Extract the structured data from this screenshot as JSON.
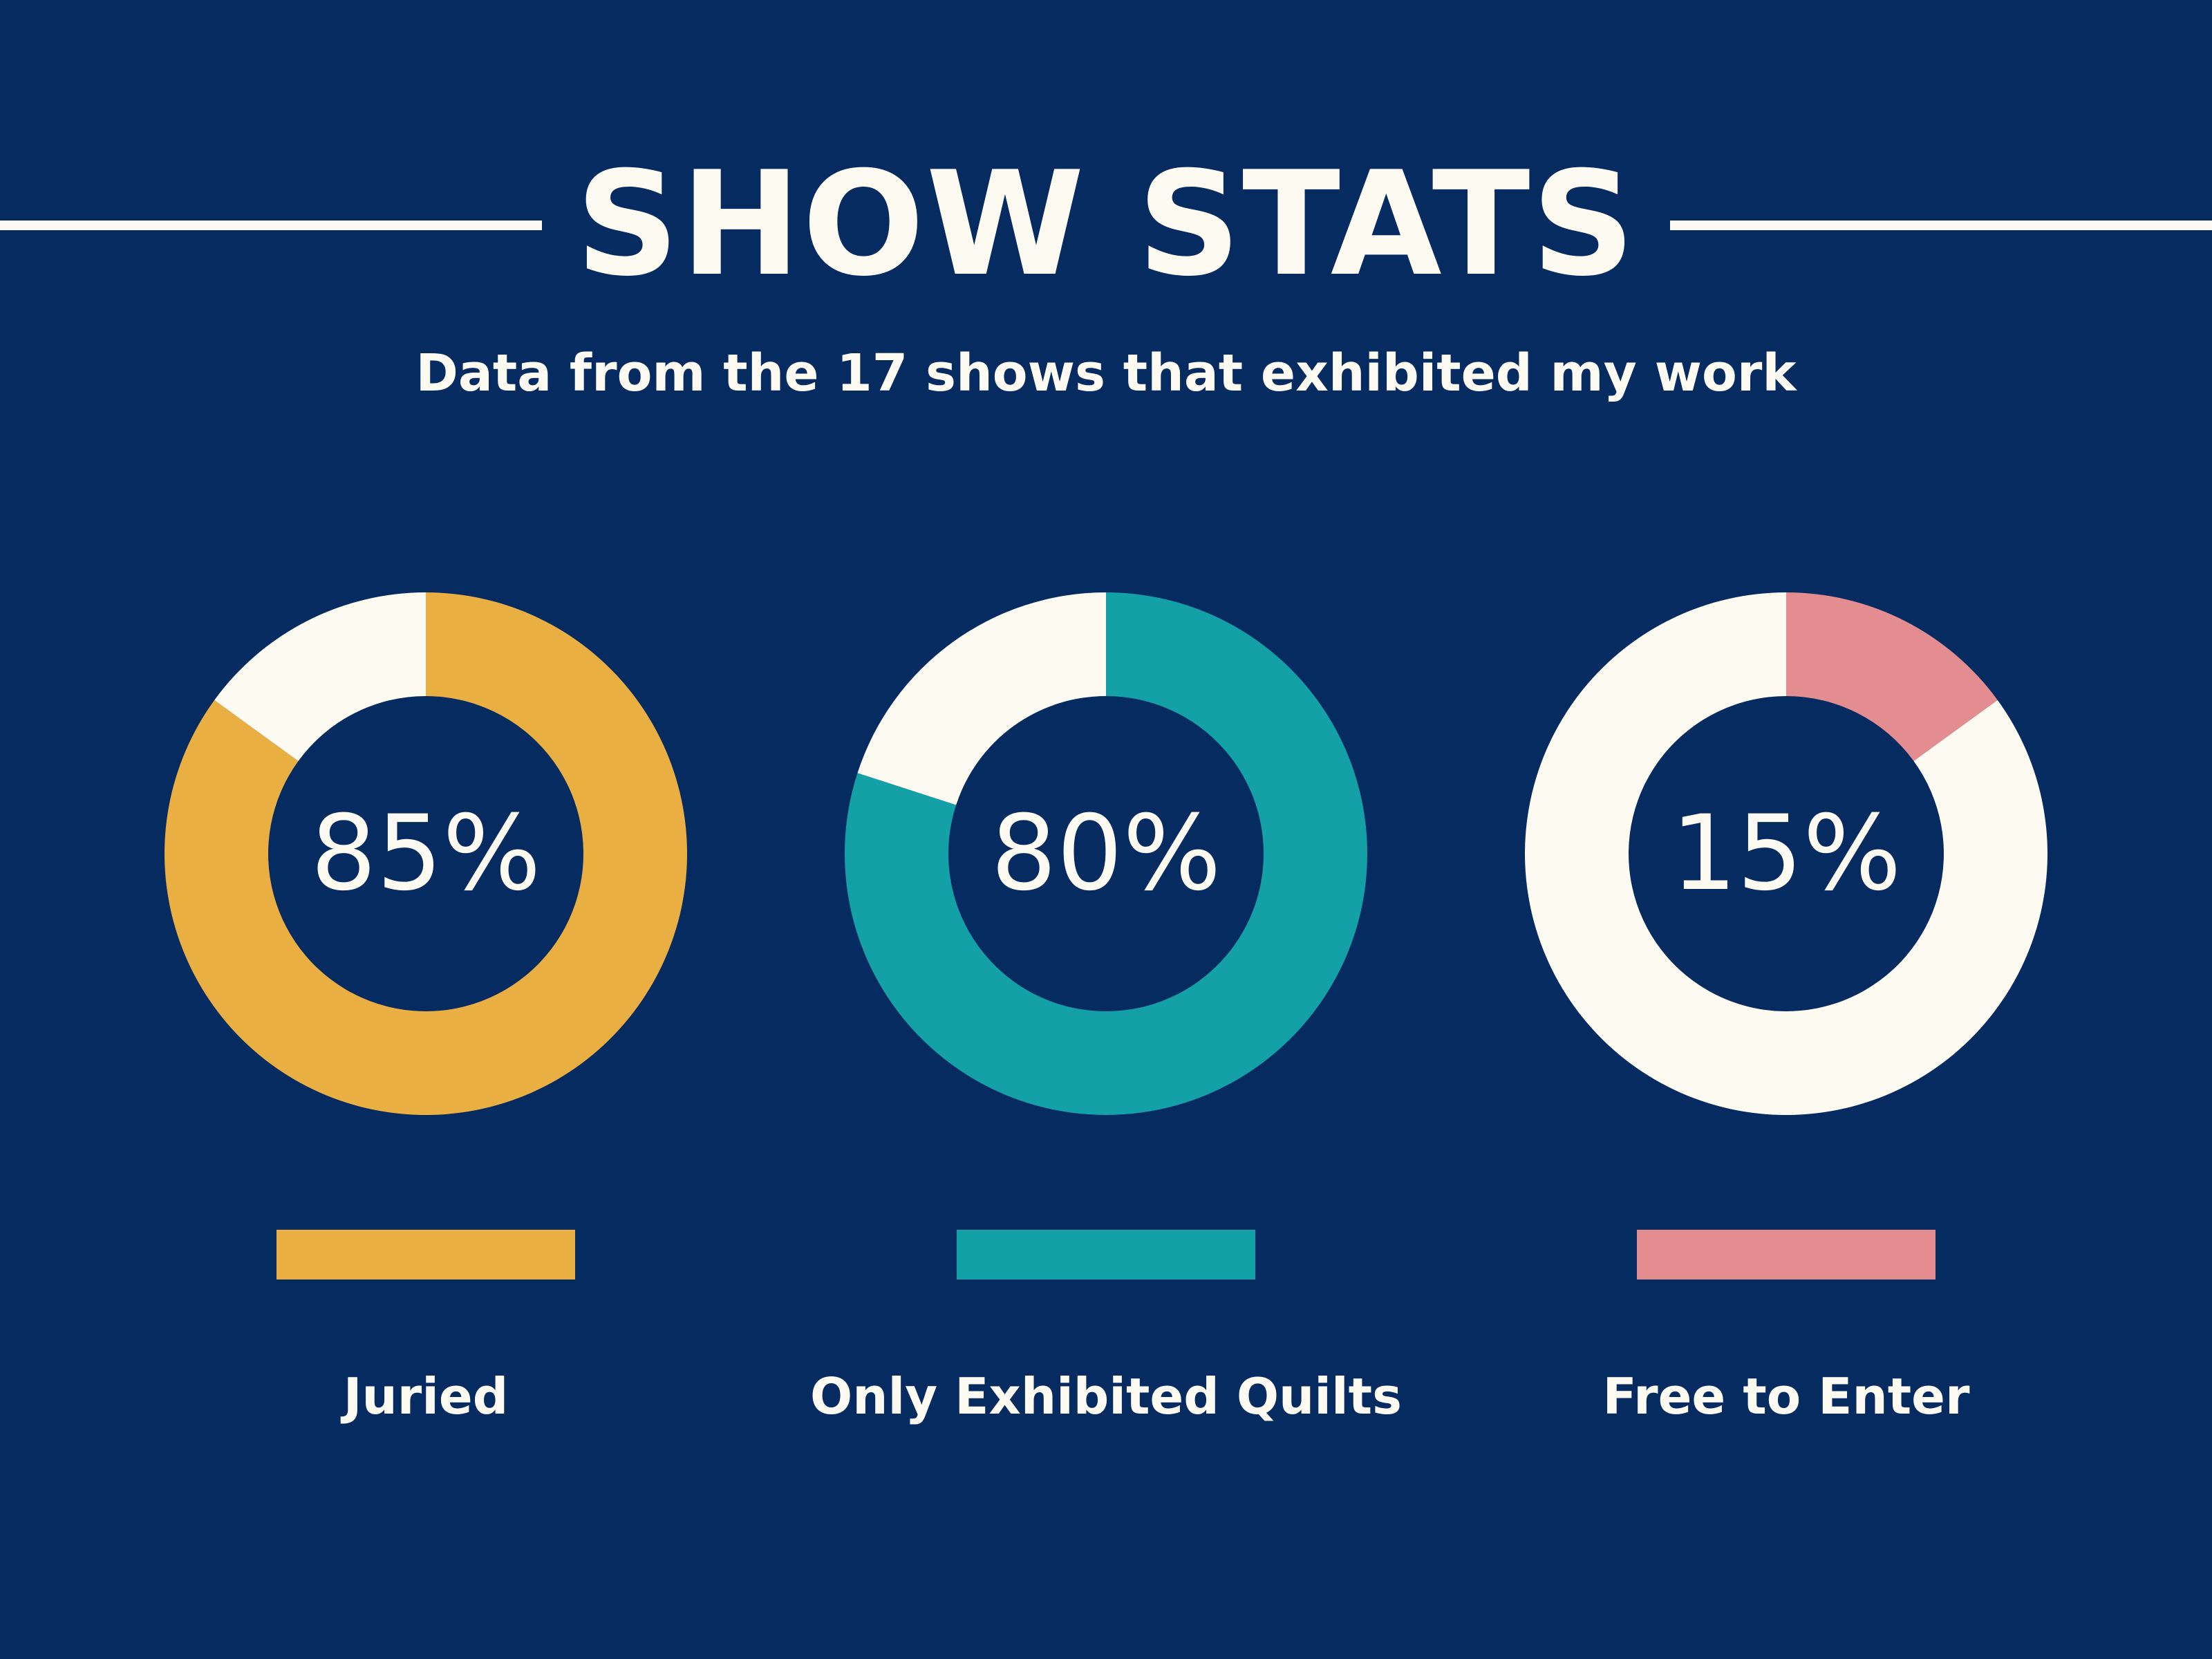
{
  "header": {
    "title": "SHOW STATS",
    "subtitle": "Data from the 17 shows that exhibited my work"
  },
  "colors": {
    "background": "#052b61",
    "remainder": "#fdfbf1",
    "text": "#fdfbf1"
  },
  "chart_data": [
    {
      "type": "pie",
      "variant": "donut",
      "label": "Juried",
      "value_label": "85%",
      "slices": [
        {
          "name": "Juried",
          "value": 85,
          "color": "#eaaf43"
        },
        {
          "name": "",
          "value": 15,
          "color": "#fdfbf1"
        }
      ]
    },
    {
      "type": "pie",
      "variant": "donut",
      "label": "Only Exhibited Quilts",
      "value_label": "80%",
      "slices": [
        {
          "name": "Only Exhibited Quilts",
          "value": 80,
          "color": "#13a0a6"
        },
        {
          "name": "",
          "value": 20,
          "color": "#fdfbf1"
        }
      ]
    },
    {
      "type": "pie",
      "variant": "donut",
      "label": "Free to Enter",
      "value_label": "15%",
      "slices": [
        {
          "name": "Free to Enter",
          "value": 15,
          "color": "#e38d91"
        },
        {
          "name": "",
          "value": 85,
          "color": "#fdfbf1"
        }
      ]
    }
  ]
}
